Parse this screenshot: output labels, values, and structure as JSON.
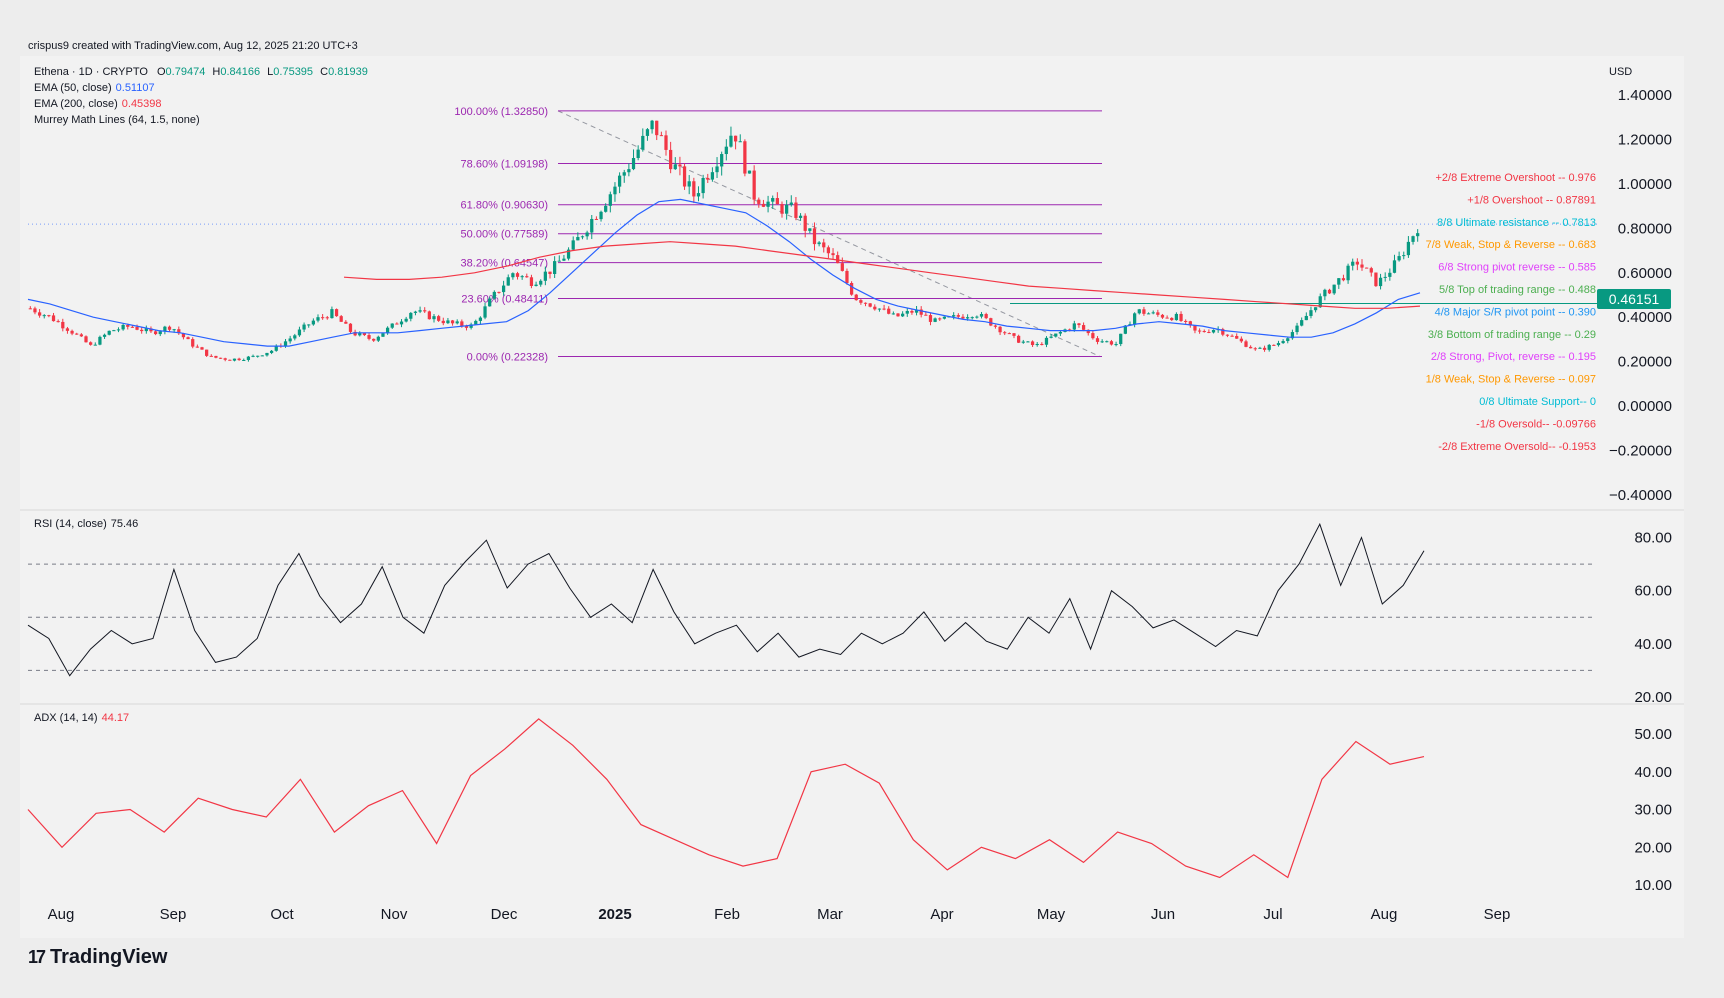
{
  "credit": "crispus9 created with TradingView.com, Aug 12, 2025 21:20 UTC+3",
  "brand": "TradingView",
  "currency": "USD",
  "colors": {
    "up": "#089981",
    "down": "#f23645",
    "ema50": "#2962ff",
    "ema200": "#f23645",
    "fib": "#9c27b0",
    "rsi": "#131722",
    "adx": "#f23645"
  },
  "legend": {
    "title": "Ethena · 1D · CRYPTO",
    "o_label": "O",
    "o": "0.79474",
    "h_label": "H",
    "h": "0.84166",
    "l_label": "L",
    "l": "0.75395",
    "c_label": "C",
    "c": "0.81939",
    "ema50": "EMA (50, close)",
    "ema50_val": "0.51107",
    "ema200": "EMA (200, close)",
    "ema200_val": "0.45398",
    "murrey": "Murrey Math Lines (64, 1.5, none)"
  },
  "price_tag": "0.46151",
  "rsi_legend": {
    "label": "RSI (14, close)",
    "value": "75.46"
  },
  "adx_legend": {
    "label": "ADX (14, 14)",
    "value": "44.17"
  },
  "chart_data": {
    "type": "line",
    "x_labels": [
      "Aug",
      "Sep",
      "Oct",
      "Nov",
      "Dec",
      "2025",
      "Feb",
      "Mar",
      "Apr",
      "May",
      "Jun",
      "Jul",
      "Aug",
      "Sep"
    ],
    "price_axis": [
      "1.40000",
      "1.20000",
      "1.00000",
      "0.80000",
      "0.60000",
      "0.40000",
      "0.20000",
      "0.00000",
      "−0.20000",
      "−0.40000"
    ],
    "rsi_axis": [
      "80.00",
      "60.00",
      "40.00",
      "20.00"
    ],
    "adx_axis": [
      "50.00",
      "40.00",
      "30.00",
      "20.00",
      "10.00"
    ],
    "price_ylim": [
      -0.4,
      1.4
    ],
    "fib_levels": [
      {
        "label": "100.00% (1.32850)",
        "value": 1.3285
      },
      {
        "label": "78.60% (1.09198)",
        "value": 1.09198
      },
      {
        "label": "61.80% (0.90630)",
        "value": 0.9063
      },
      {
        "label": "50.00% (0.77589)",
        "value": 0.77589
      },
      {
        "label": "38.20% (0.64547)",
        "value": 0.64547
      },
      {
        "label": "23.60% (0.48411)",
        "value": 0.48411
      },
      {
        "label": "0.00% (0.22328)",
        "value": 0.22328
      }
    ],
    "murrey_levels": [
      {
        "label": "+2/8 Extreme Overshoot --  0.976",
        "color": "#f23645"
      },
      {
        "label": "+1/8 Overshoot --  0.87891",
        "color": "#f23645"
      },
      {
        "label": "8/8 Ultimate resistance --  0.7813",
        "color": "#00bcd4"
      },
      {
        "label": "7/8 Weak, Stop & Reverse --  0.683",
        "color": "#ff9800"
      },
      {
        "label": "6/8 Strong pivot reverse --  0.585",
        "color": "#e040fb"
      },
      {
        "label": "5/8 Top of trading range --  0.488",
        "color": "#4caf50"
      },
      {
        "label": "4/8 Major S/R pivot point --  0.390",
        "color": "#2196f3"
      },
      {
        "label": "3/8 Bottom of trading range --  0.29",
        "color": "#4caf50"
      },
      {
        "label": "2/8 Strong, Pivot, reverse --  0.195",
        "color": "#e040fb"
      },
      {
        "label": "1/8 Weak, Stop & Reverse --  0.097",
        "color": "#ff9800"
      },
      {
        "label": "0/8 Ultimate Support--  0",
        "color": "#00bcd4"
      },
      {
        "label": "-1/8 Oversold--  -0.09766",
        "color": "#f23645"
      },
      {
        "label": "-2/8 Extreme Oversold--  -0.1953",
        "color": "#f23645"
      }
    ],
    "price_close": [
      0.44,
      0.4,
      0.34,
      0.27,
      0.34,
      0.36,
      0.33,
      0.36,
      0.28,
      0.22,
      0.21,
      0.22,
      0.25,
      0.31,
      0.38,
      0.42,
      0.33,
      0.3,
      0.36,
      0.43,
      0.4,
      0.37,
      0.36,
      0.49,
      0.6,
      0.56,
      0.62,
      0.72,
      0.85,
      0.98,
      1.12,
      1.27,
      1.08,
      0.95,
      1.1,
      1.25,
      0.95,
      0.9,
      0.88,
      0.74,
      0.66,
      0.49,
      0.45,
      0.4,
      0.43,
      0.38,
      0.4,
      0.42,
      0.36,
      0.3,
      0.27,
      0.32,
      0.37,
      0.3,
      0.28,
      0.43,
      0.41,
      0.4,
      0.33,
      0.35,
      0.3,
      0.25,
      0.28,
      0.35,
      0.47,
      0.56,
      0.65,
      0.55,
      0.65,
      0.81
    ],
    "ema50": [
      0.48,
      0.46,
      0.43,
      0.4,
      0.38,
      0.36,
      0.34,
      0.33,
      0.31,
      0.29,
      0.28,
      0.27,
      0.27,
      0.29,
      0.31,
      0.33,
      0.33,
      0.33,
      0.34,
      0.35,
      0.36,
      0.37,
      0.38,
      0.43,
      0.51,
      0.6,
      0.69,
      0.78,
      0.86,
      0.92,
      0.93,
      0.91,
      0.89,
      0.87,
      0.81,
      0.74,
      0.66,
      0.59,
      0.53,
      0.48,
      0.45,
      0.43,
      0.41,
      0.39,
      0.38,
      0.36,
      0.35,
      0.34,
      0.34,
      0.34,
      0.35,
      0.37,
      0.38,
      0.37,
      0.36,
      0.34,
      0.33,
      0.32,
      0.31,
      0.31,
      0.33,
      0.37,
      0.42,
      0.48,
      0.51
    ],
    "ema200": [
      0.58,
      0.57,
      0.57,
      0.58,
      0.6,
      0.63,
      0.67,
      0.7,
      0.72,
      0.73,
      0.74,
      0.73,
      0.72,
      0.7,
      0.68,
      0.66,
      0.64,
      0.62,
      0.6,
      0.58,
      0.56,
      0.54,
      0.53,
      0.52,
      0.51,
      0.5,
      0.49,
      0.48,
      0.47,
      0.46,
      0.45,
      0.44,
      0.44,
      0.45
    ],
    "rsi": [
      47,
      42,
      28,
      38,
      45,
      40,
      42,
      68,
      45,
      33,
      35,
      42,
      62,
      74,
      58,
      48,
      55,
      69,
      50,
      44,
      62,
      71,
      79,
      61,
      70,
      74,
      61,
      50,
      55,
      48,
      68,
      52,
      40,
      44,
      47,
      37,
      44,
      35,
      38,
      36,
      44,
      40,
      44,
      52,
      41,
      48,
      41,
      38,
      50,
      44,
      57,
      38,
      60,
      54,
      46,
      49,
      44,
      39,
      45,
      43,
      60,
      70,
      85,
      62,
      80,
      55,
      62,
      75
    ],
    "adx": [
      30,
      20,
      29,
      30,
      24,
      33,
      30,
      28,
      38,
      24,
      31,
      35,
      21,
      39,
      46,
      54,
      47,
      38,
      26,
      22,
      18,
      15,
      17,
      40,
      42,
      37,
      22,
      14,
      20,
      17,
      22,
      16,
      24,
      21,
      15,
      12,
      18,
      12,
      38,
      48,
      42,
      44
    ]
  }
}
